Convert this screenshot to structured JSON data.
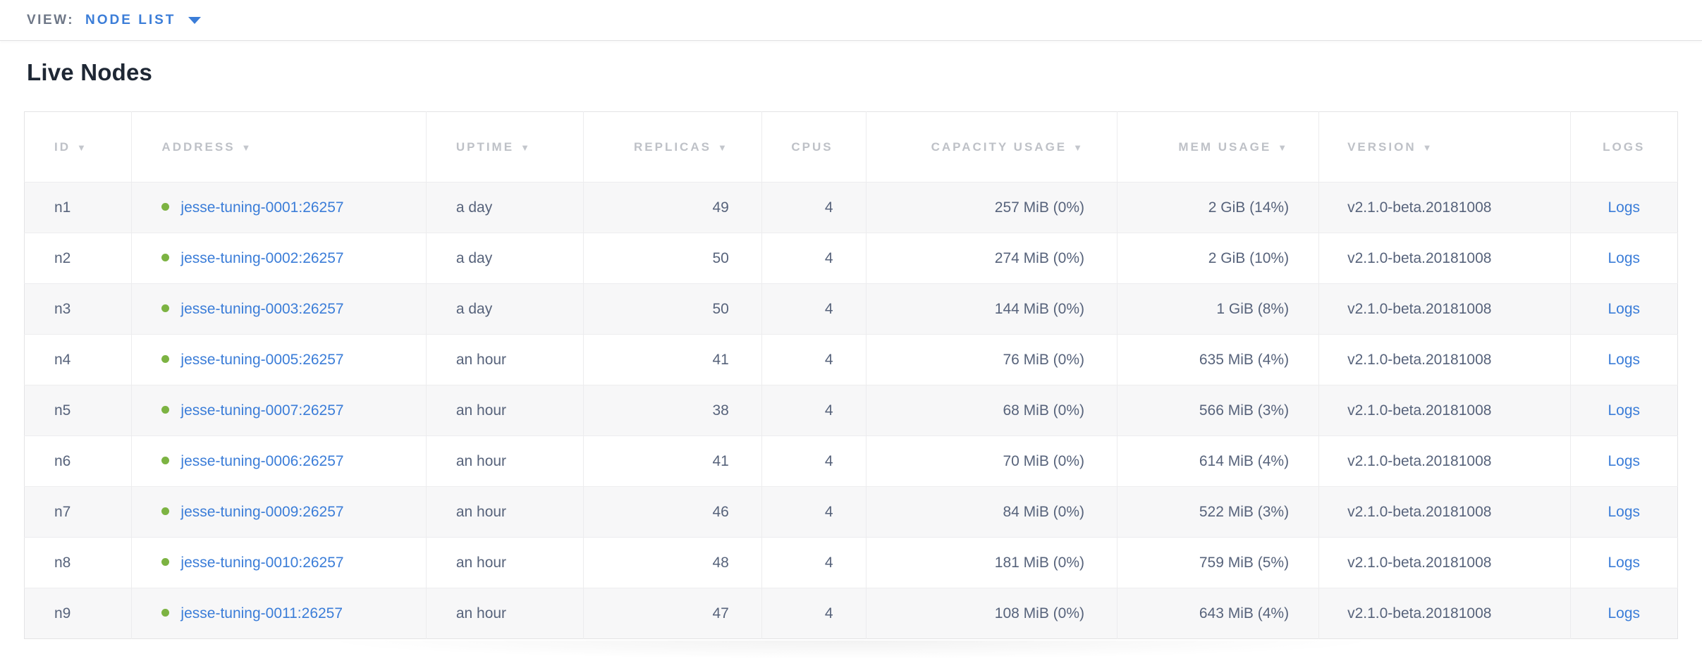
{
  "toolbar": {
    "view_label": "VIEW:",
    "view_value": "NODE LIST"
  },
  "page": {
    "title": "Live Nodes"
  },
  "colors": {
    "accent_blue": "#3b7dd8",
    "healthy_green": "#7cb342",
    "header_gray": "#bec1c7",
    "body_text": "#57637b",
    "row_stripe": "#f7f7f8"
  },
  "table": {
    "columns": [
      {
        "key": "id",
        "label": "ID",
        "sortable": true
      },
      {
        "key": "address",
        "label": "ADDRESS",
        "sortable": true
      },
      {
        "key": "uptime",
        "label": "UPTIME",
        "sortable": true
      },
      {
        "key": "replicas",
        "label": "REPLICAS",
        "sortable": true
      },
      {
        "key": "cpus",
        "label": "CPUS",
        "sortable": false
      },
      {
        "key": "capacity",
        "label": "CAPACITY USAGE",
        "sortable": true
      },
      {
        "key": "mem",
        "label": "MEM USAGE",
        "sortable": true
      },
      {
        "key": "version",
        "label": "VERSION",
        "sortable": true
      },
      {
        "key": "logs",
        "label": "LOGS",
        "sortable": false
      }
    ],
    "rows": [
      {
        "id": "n1",
        "address": "jesse-tuning-0001:26257",
        "uptime": "a day",
        "replicas": "49",
        "cpus": "4",
        "capacity": "257 MiB (0%)",
        "mem": "2 GiB (14%)",
        "version": "v2.1.0-beta.20181008",
        "logs": "Logs"
      },
      {
        "id": "n2",
        "address": "jesse-tuning-0002:26257",
        "uptime": "a day",
        "replicas": "50",
        "cpus": "4",
        "capacity": "274 MiB (0%)",
        "mem": "2 GiB (10%)",
        "version": "v2.1.0-beta.20181008",
        "logs": "Logs"
      },
      {
        "id": "n3",
        "address": "jesse-tuning-0003:26257",
        "uptime": "a day",
        "replicas": "50",
        "cpus": "4",
        "capacity": "144 MiB (0%)",
        "mem": "1 GiB (8%)",
        "version": "v2.1.0-beta.20181008",
        "logs": "Logs"
      },
      {
        "id": "n4",
        "address": "jesse-tuning-0005:26257",
        "uptime": "an hour",
        "replicas": "41",
        "cpus": "4",
        "capacity": "76 MiB (0%)",
        "mem": "635 MiB (4%)",
        "version": "v2.1.0-beta.20181008",
        "logs": "Logs"
      },
      {
        "id": "n5",
        "address": "jesse-tuning-0007:26257",
        "uptime": "an hour",
        "replicas": "38",
        "cpus": "4",
        "capacity": "68 MiB (0%)",
        "mem": "566 MiB (3%)",
        "version": "v2.1.0-beta.20181008",
        "logs": "Logs"
      },
      {
        "id": "n6",
        "address": "jesse-tuning-0006:26257",
        "uptime": "an hour",
        "replicas": "41",
        "cpus": "4",
        "capacity": "70 MiB (0%)",
        "mem": "614 MiB (4%)",
        "version": "v2.1.0-beta.20181008",
        "logs": "Logs"
      },
      {
        "id": "n7",
        "address": "jesse-tuning-0009:26257",
        "uptime": "an hour",
        "replicas": "46",
        "cpus": "4",
        "capacity": "84 MiB (0%)",
        "mem": "522 MiB (3%)",
        "version": "v2.1.0-beta.20181008",
        "logs": "Logs"
      },
      {
        "id": "n8",
        "address": "jesse-tuning-0010:26257",
        "uptime": "an hour",
        "replicas": "48",
        "cpus": "4",
        "capacity": "181 MiB (0%)",
        "mem": "759 MiB (5%)",
        "version": "v2.1.0-beta.20181008",
        "logs": "Logs"
      },
      {
        "id": "n9",
        "address": "jesse-tuning-0011:26257",
        "uptime": "an hour",
        "replicas": "47",
        "cpus": "4",
        "capacity": "108 MiB (0%)",
        "mem": "643 MiB (4%)",
        "version": "v2.1.0-beta.20181008",
        "logs": "Logs"
      }
    ]
  }
}
